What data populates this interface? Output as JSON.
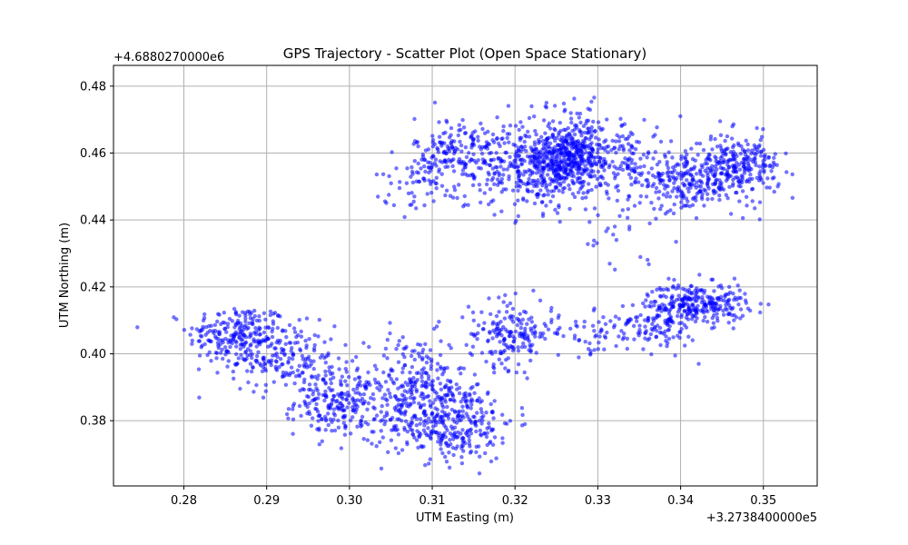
{
  "chart_data": {
    "type": "scatter",
    "title": "GPS Trajectory - Scatter Plot (Open Space Stationary)",
    "xlabel": "UTM Easting (m)",
    "ylabel": "UTM Northing (m)",
    "x_offset_label": "+3.2738400000e5",
    "y_offset_label": "+4.6880270000e6",
    "xlim": [
      0.2715,
      0.3565
    ],
    "ylim": [
      0.3605,
      0.4862
    ],
    "x_ticks": [
      0.28,
      0.29,
      0.3,
      0.31,
      0.32,
      0.33,
      0.34,
      0.35
    ],
    "x_tick_labels": [
      "0.28",
      "0.29",
      "0.30",
      "0.31",
      "0.32",
      "0.33",
      "0.34",
      "0.35"
    ],
    "y_ticks": [
      0.38,
      0.4,
      0.42,
      0.44,
      0.46,
      0.48
    ],
    "y_tick_labels": [
      "0.38",
      "0.40",
      "0.42",
      "0.44",
      "0.46",
      "0.48"
    ],
    "grid": true,
    "marker_color": "#0000ff",
    "marker_alpha": 0.55,
    "clusters": [
      {
        "cx": 0.2865,
        "cy": 0.4058,
        "sx": 0.003,
        "sy": 0.0045,
        "n": 220
      },
      {
        "cx": 0.292,
        "cy": 0.3985,
        "sx": 0.0032,
        "sy": 0.005,
        "n": 180
      },
      {
        "cx": 0.299,
        "cy": 0.3855,
        "sx": 0.0028,
        "sy": 0.005,
        "n": 220
      },
      {
        "cx": 0.308,
        "cy": 0.39,
        "sx": 0.003,
        "sy": 0.008,
        "n": 220
      },
      {
        "cx": 0.312,
        "cy": 0.38,
        "sx": 0.004,
        "sy": 0.006,
        "n": 340
      },
      {
        "cx": 0.3195,
        "cy": 0.406,
        "sx": 0.0025,
        "sy": 0.005,
        "n": 180
      },
      {
        "cx": 0.329,
        "cy": 0.406,
        "sx": 0.003,
        "sy": 0.003,
        "n": 50
      },
      {
        "cx": 0.337,
        "cy": 0.4085,
        "sx": 0.0025,
        "sy": 0.004,
        "n": 110
      },
      {
        "cx": 0.342,
        "cy": 0.415,
        "sx": 0.003,
        "sy": 0.003,
        "n": 270
      },
      {
        "cx": 0.3135,
        "cy": 0.46,
        "sx": 0.0028,
        "sy": 0.0055,
        "n": 200
      },
      {
        "cx": 0.309,
        "cy": 0.452,
        "sx": 0.003,
        "sy": 0.0045,
        "n": 60
      },
      {
        "cx": 0.322,
        "cy": 0.455,
        "sx": 0.003,
        "sy": 0.006,
        "n": 280
      },
      {
        "cx": 0.327,
        "cy": 0.459,
        "sx": 0.003,
        "sy": 0.005,
        "n": 480
      },
      {
        "cx": 0.3345,
        "cy": 0.454,
        "sx": 0.003,
        "sy": 0.006,
        "n": 120
      },
      {
        "cx": 0.341,
        "cy": 0.451,
        "sx": 0.0025,
        "sy": 0.004,
        "n": 180
      },
      {
        "cx": 0.347,
        "cy": 0.456,
        "sx": 0.0025,
        "sy": 0.0045,
        "n": 260
      },
      {
        "cx": 0.3255,
        "cy": 0.473,
        "sx": 0.0025,
        "sy": 0.003,
        "n": 20
      },
      {
        "cx": 0.332,
        "cy": 0.435,
        "sx": 0.003,
        "sy": 0.004,
        "n": 20
      }
    ]
  }
}
